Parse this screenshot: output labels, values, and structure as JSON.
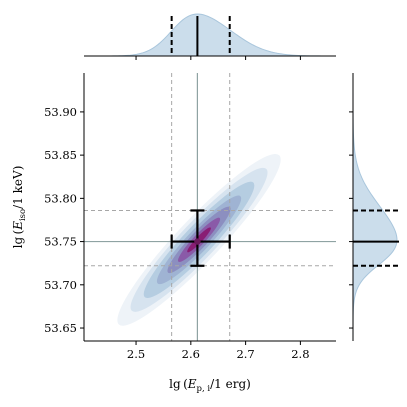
{
  "chart_data": {
    "type": "scatter",
    "title": "",
    "xlabel": "lg (E_p,i / 1 erg)",
    "ylabel": "lg (E_iso / 1 keV)",
    "xlabel_parts": {
      "pre": "lg (",
      "main": "E",
      "sub": "p, i",
      "post": "/1 erg)"
    },
    "ylabel_parts": {
      "pre": "lg (",
      "main": "E",
      "sub": "iso",
      "post": "/1 keV)"
    },
    "xlim": [
      2.405,
      2.865
    ],
    "ylim": [
      53.635,
      53.945
    ],
    "xticks": [
      2.5,
      2.6,
      2.7,
      2.8
    ],
    "yticks": [
      53.65,
      53.7,
      53.75,
      53.8,
      53.85,
      53.9
    ],
    "xtick_labels": [
      "2.5",
      "2.6",
      "2.7",
      "2.8"
    ],
    "ytick_labels": [
      "53.65",
      "53.70",
      "53.75",
      "53.80",
      "53.85",
      "53.90"
    ],
    "grid": false,
    "point_estimate": {
      "x": 2.612,
      "y": 53.75,
      "x_err_low": 0.047,
      "x_err_high": 0.059,
      "y_err_low": 0.028,
      "y_err_high": 0.036
    },
    "credible_lines": {
      "x": [
        2.565,
        2.612,
        2.671
      ],
      "y": [
        53.722,
        53.75,
        53.786
      ]
    },
    "density_2d": {
      "center": [
        2.615,
        53.752
      ],
      "rho": 0.94,
      "sigma_x": 0.048,
      "sigma_y": 0.032,
      "levels": [
        {
          "n_sigma": 3.1,
          "color": "#eef3f8"
        },
        {
          "n_sigma": 2.6,
          "color": "#d6e3ef"
        },
        {
          "n_sigma": 2.1,
          "color": "#b5cde1"
        },
        {
          "n_sigma": 1.6,
          "color": "#9fb3d3"
        },
        {
          "n_sigma": 1.2,
          "color": "#8c8fc0"
        },
        {
          "n_sigma": 0.8,
          "color": "#8a5aa8"
        },
        {
          "n_sigma": 0.45,
          "color": "#891d74"
        }
      ]
    },
    "marginal_x": {
      "mean": 2.612,
      "sd": 0.053,
      "color": "#c2d7e7"
    },
    "marginal_y": {
      "mean": 53.752,
      "sd": 0.033,
      "color": "#c2d7e7"
    },
    "colors": {
      "guide_dashed": "#a7a7a7",
      "guide_solid": "#8fa3a3",
      "errorbar": "#000000",
      "marginal_edge": "#a9c6dc"
    }
  }
}
